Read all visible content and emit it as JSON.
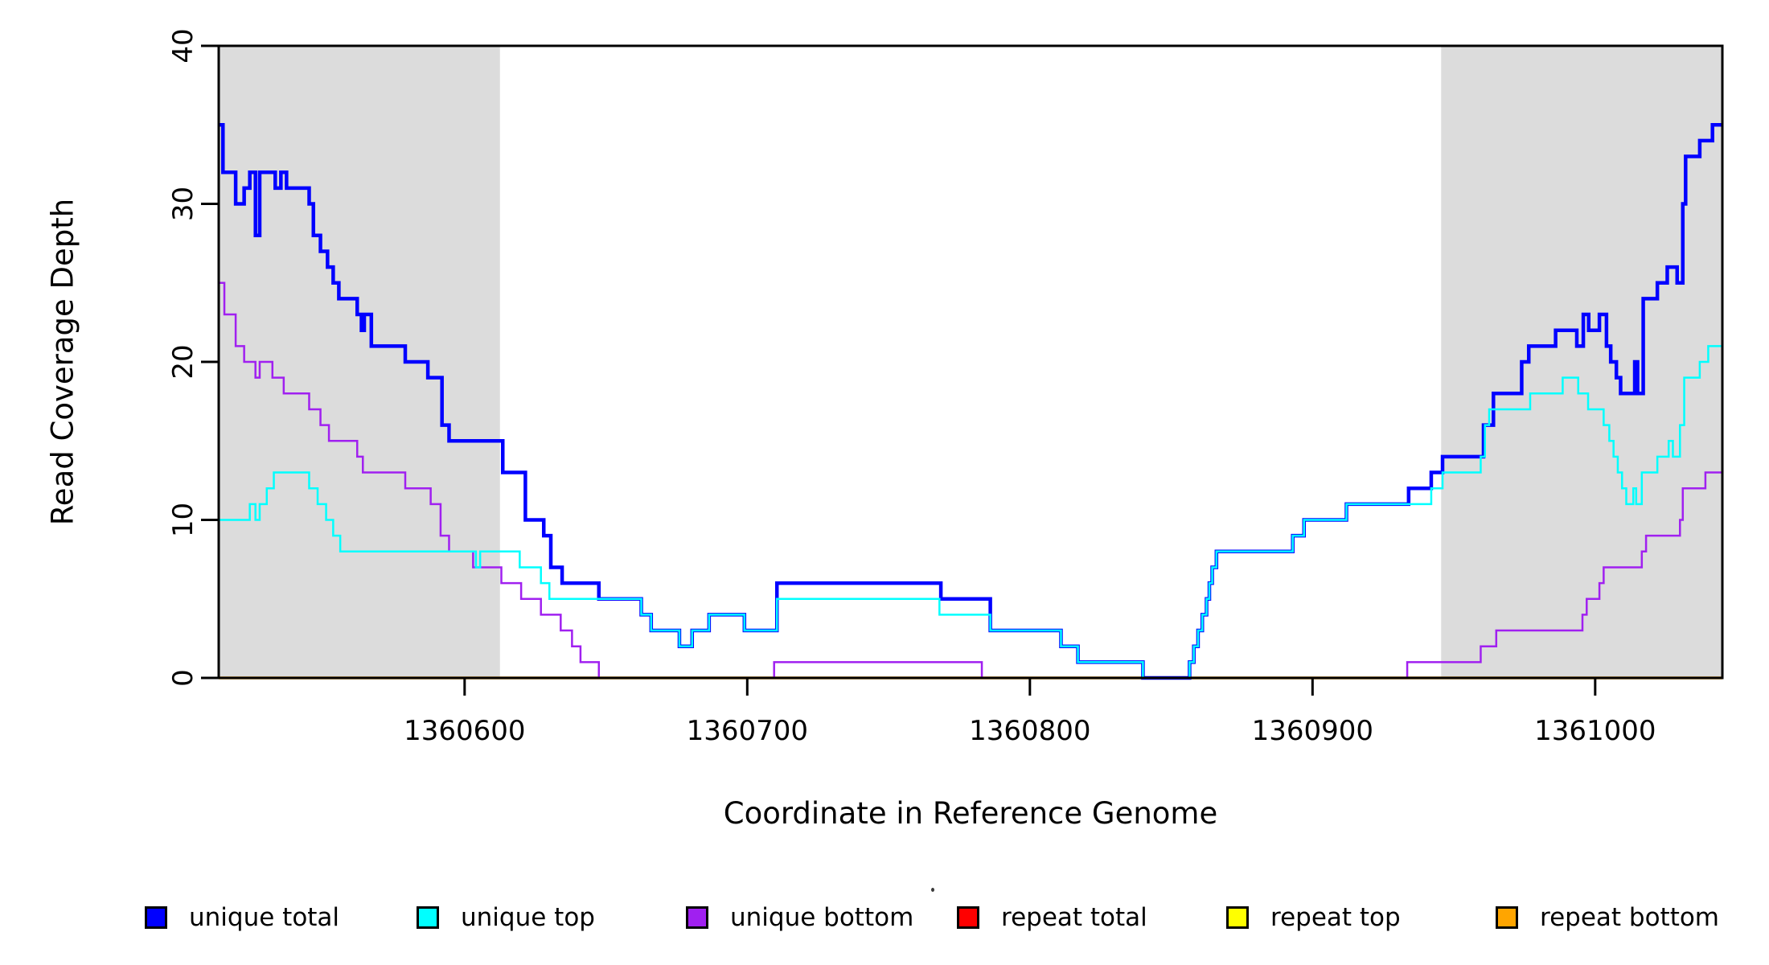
{
  "page": {
    "background": "#ffffff",
    "x_axis_label": "Coordinate in Reference Genome",
    "y_axis_label": "Read Coverage Depth"
  },
  "colors": {
    "shaded_region": "#dcdcdc",
    "axis": "#000000",
    "unique_total": "#0000ff",
    "unique_top": "#00ffff",
    "unique_bottom": "#a020f0",
    "repeat_total": "#ff0000",
    "repeat_top": "#ffff00",
    "repeat_bottom": "#ffa500"
  },
  "chart_data": {
    "type": "line",
    "subtype": "step",
    "title": "",
    "xlabel": "Coordinate in Reference Genome",
    "ylabel": "Read Coverage Depth",
    "xlim": [
      1360513,
      1361045
    ],
    "ylim": [
      0,
      40
    ],
    "grid": false,
    "legend_position": "bottom",
    "x_ticks": [
      1360600,
      1360700,
      1360800,
      1360900,
      1361000
    ],
    "y_ticks": [
      0,
      10,
      20,
      30,
      40
    ],
    "shaded_regions": [
      {
        "x0": 1360513,
        "x1": 1360612.5
      },
      {
        "x0": 1360945.5,
        "x1": 1361045
      }
    ],
    "series": [
      {
        "name": "repeat total",
        "color": "#ff0000",
        "width": 3,
        "points": [
          [
            1360513,
            0
          ]
        ]
      },
      {
        "name": "repeat top",
        "color": "#ffff00",
        "width": 3,
        "points": [
          [
            1360513,
            0
          ]
        ]
      },
      {
        "name": "repeat bottom",
        "color": "#ffa500",
        "width": 3.5,
        "points": [
          [
            1360513,
            0
          ]
        ]
      },
      {
        "name": "unique bottom",
        "color": "#a020f0",
        "width": 2.5,
        "points": [
          [
            1360513,
            25
          ],
          [
            1360515,
            23
          ],
          [
            1360519,
            21
          ],
          [
            1360522,
            20
          ],
          [
            1360526,
            19
          ],
          [
            1360527.5,
            20
          ],
          [
            1360532,
            19
          ],
          [
            1360536,
            18
          ],
          [
            1360545,
            17
          ],
          [
            1360549,
            16
          ],
          [
            1360552,
            15
          ],
          [
            1360562,
            14
          ],
          [
            1360564,
            13
          ],
          [
            1360579,
            12
          ],
          [
            1360588,
            11
          ],
          [
            1360591.5,
            9
          ],
          [
            1360594.5,
            8
          ],
          [
            1360603,
            7
          ],
          [
            1360613,
            6
          ],
          [
            1360620,
            5
          ],
          [
            1360627,
            4
          ],
          [
            1360634,
            3
          ],
          [
            1360638,
            2
          ],
          [
            1360641,
            1
          ],
          [
            1360647.5,
            0
          ],
          [
            1360709.5,
            1
          ],
          [
            1360783,
            0
          ],
          [
            1360933.5,
            1
          ],
          [
            1360959.5,
            2
          ],
          [
            1360965,
            3
          ],
          [
            1360995.5,
            4
          ],
          [
            1360997,
            5
          ],
          [
            1361001.5,
            6
          ],
          [
            1361003,
            7
          ],
          [
            1361016.5,
            8
          ],
          [
            1361018,
            9
          ],
          [
            1361030,
            10
          ],
          [
            1361031,
            12
          ],
          [
            1361039,
            13
          ]
        ]
      },
      {
        "name": "unique total",
        "color": "#0000ff",
        "width": 4.5,
        "points": [
          [
            1360513,
            35
          ],
          [
            1360514.5,
            32
          ],
          [
            1360519,
            30
          ],
          [
            1360522,
            31
          ],
          [
            1360524,
            32
          ],
          [
            1360526,
            28
          ],
          [
            1360527.5,
            32
          ],
          [
            1360533,
            31
          ],
          [
            1360535,
            32
          ],
          [
            1360537,
            31
          ],
          [
            1360545,
            30
          ],
          [
            1360546.5,
            28
          ],
          [
            1360549,
            27
          ],
          [
            1360551.5,
            26
          ],
          [
            1360553.5,
            25
          ],
          [
            1360555.5,
            24
          ],
          [
            1360562,
            23
          ],
          [
            1360563.5,
            22
          ],
          [
            1360564.5,
            23
          ],
          [
            1360567,
            21
          ],
          [
            1360579,
            20
          ],
          [
            1360587,
            19
          ],
          [
            1360592,
            16
          ],
          [
            1360594.5,
            15
          ],
          [
            1360613.5,
            13
          ],
          [
            1360621.5,
            10
          ],
          [
            1360628,
            9
          ],
          [
            1360630.5,
            7
          ],
          [
            1360634.5,
            6
          ],
          [
            1360647.5,
            5
          ],
          [
            1360662.5,
            4
          ],
          [
            1360666,
            3
          ],
          [
            1360676,
            2
          ],
          [
            1360680.5,
            3
          ],
          [
            1360686.5,
            4
          ],
          [
            1360699,
            3
          ],
          [
            1360710.5,
            6
          ],
          [
            1360768.5,
            5
          ],
          [
            1360786,
            3
          ],
          [
            1360811,
            2
          ],
          [
            1360817,
            1
          ],
          [
            1360840,
            0
          ],
          [
            1360856.5,
            1
          ],
          [
            1360858,
            2
          ],
          [
            1360859.5,
            3
          ],
          [
            1360861,
            4
          ],
          [
            1360862.5,
            5
          ],
          [
            1360863.5,
            6
          ],
          [
            1360864.5,
            7
          ],
          [
            1360866,
            8
          ],
          [
            1360893,
            9
          ],
          [
            1360897,
            10
          ],
          [
            1360912,
            11
          ],
          [
            1360934,
            12
          ],
          [
            1360942,
            13
          ],
          [
            1360946,
            14
          ],
          [
            1360960.5,
            16
          ],
          [
            1360964,
            18
          ],
          [
            1360974,
            20
          ],
          [
            1360976.5,
            21
          ],
          [
            1360986,
            22
          ],
          [
            1360993.5,
            21
          ],
          [
            1360995.8,
            23
          ],
          [
            1360997.7,
            22
          ],
          [
            1361001.5,
            23
          ],
          [
            1361004,
            21
          ],
          [
            1361005.5,
            20
          ],
          [
            1361007.5,
            19
          ],
          [
            1361009,
            18
          ],
          [
            1361014,
            20
          ],
          [
            1361015,
            18
          ],
          [
            1361017,
            24
          ],
          [
            1361022,
            25
          ],
          [
            1361025.5,
            26
          ],
          [
            1361029,
            25
          ],
          [
            1361031,
            30
          ],
          [
            1361032,
            33
          ],
          [
            1361037,
            34
          ],
          [
            1361041.5,
            35
          ]
        ]
      },
      {
        "name": "unique top",
        "color": "#00ffff",
        "width": 2.5,
        "points": [
          [
            1360513,
            10
          ],
          [
            1360524,
            11
          ],
          [
            1360526,
            10
          ],
          [
            1360527.5,
            11
          ],
          [
            1360530,
            12
          ],
          [
            1360532.5,
            13
          ],
          [
            1360545,
            12
          ],
          [
            1360548,
            11
          ],
          [
            1360551,
            10
          ],
          [
            1360553.5,
            9
          ],
          [
            1360556,
            8
          ],
          [
            1360604,
            7
          ],
          [
            1360605.5,
            8
          ],
          [
            1360619.5,
            7
          ],
          [
            1360627,
            6
          ],
          [
            1360630,
            5
          ],
          [
            1360662.5,
            4
          ],
          [
            1360666,
            3
          ],
          [
            1360676,
            2
          ],
          [
            1360680.5,
            3
          ],
          [
            1360686.5,
            4
          ],
          [
            1360699,
            3
          ],
          [
            1360710.5,
            5
          ],
          [
            1360768,
            4
          ],
          [
            1360786,
            3
          ],
          [
            1360811,
            2
          ],
          [
            1360817,
            1
          ],
          [
            1360840,
            0
          ],
          [
            1360856.5,
            1
          ],
          [
            1360858,
            2
          ],
          [
            1360859.5,
            3
          ],
          [
            1360861,
            4
          ],
          [
            1360862.5,
            5
          ],
          [
            1360863.5,
            6
          ],
          [
            1360864.5,
            7
          ],
          [
            1360866,
            8
          ],
          [
            1360893,
            9
          ],
          [
            1360897,
            10
          ],
          [
            1360912,
            11
          ],
          [
            1360942,
            12
          ],
          [
            1360946,
            13
          ],
          [
            1360959.5,
            14
          ],
          [
            1360961,
            16
          ],
          [
            1360962.5,
            17
          ],
          [
            1360977,
            18
          ],
          [
            1360988.5,
            19
          ],
          [
            1360994,
            18
          ],
          [
            1360997.5,
            17
          ],
          [
            1361003,
            16
          ],
          [
            1361005,
            15
          ],
          [
            1361006.5,
            14
          ],
          [
            1361008,
            13
          ],
          [
            1361009.5,
            12
          ],
          [
            1361011,
            11
          ],
          [
            1361013.5,
            12
          ],
          [
            1361014.5,
            11
          ],
          [
            1361016.5,
            13
          ],
          [
            1361022,
            14
          ],
          [
            1361026,
            15
          ],
          [
            1361027.5,
            14
          ],
          [
            1361030,
            16
          ],
          [
            1361031.5,
            19
          ],
          [
            1361037,
            20
          ],
          [
            1361040,
            21
          ]
        ]
      }
    ]
  },
  "legend": {
    "items": [
      {
        "label": "unique total",
        "color": "#0000ff"
      },
      {
        "label": "unique top",
        "color": "#00ffff"
      },
      {
        "label": "unique bottom",
        "color": "#a020f0"
      },
      {
        "label": "repeat total",
        "color": "#ff0000"
      },
      {
        "label": "repeat top",
        "color": "#ffff00"
      },
      {
        "label": "repeat bottom",
        "color": "#ffa500"
      }
    ]
  },
  "artifacts": {
    "stray_dot": true
  }
}
